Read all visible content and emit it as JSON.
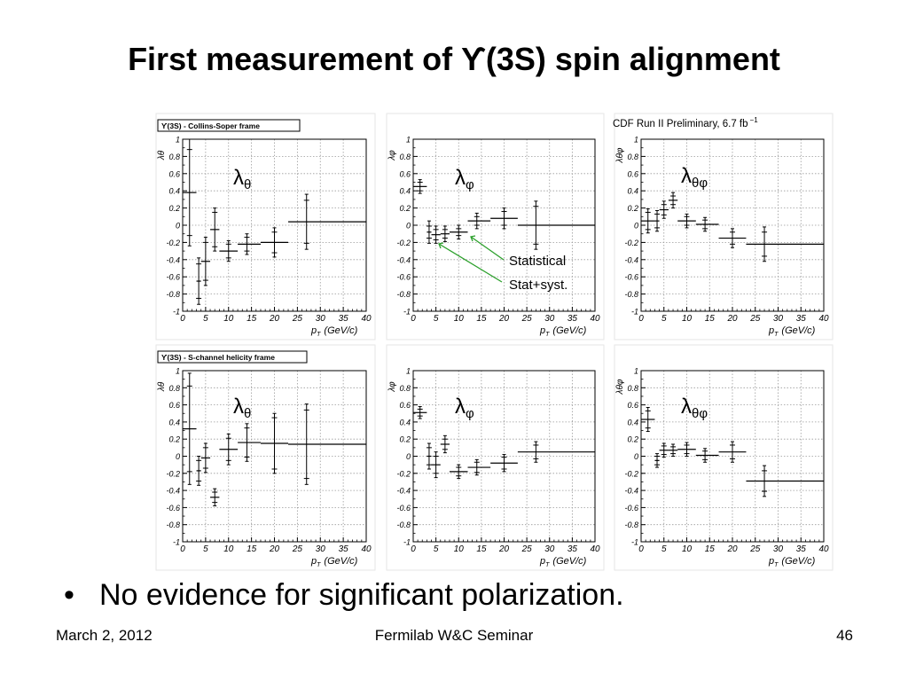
{
  "slide": {
    "title": "First measurement of ϒ(3S) spin alignment",
    "bullet": "No evidence for significant polarization.",
    "footer_left": "March 2, 2012",
    "footer_center": "Fermilab W&C Seminar",
    "footer_right": "46"
  },
  "figure": {
    "preliminary_label": "CDF Run II Preliminary, 6.7 fb",
    "preliminary_exp": "−1",
    "annotation_statistical": "Statistical",
    "annotation_stat_syst": "Stat+syst.",
    "xaxis_title": "p",
    "xaxis_sub": "T",
    "xaxis_unit": "(GeV/c)",
    "xticks": [
      "0",
      "5",
      "10",
      "15",
      "20",
      "25",
      "30",
      "35",
      "40"
    ],
    "yticks": [
      "-1",
      "-0.8",
      "-0.6",
      "-0.4",
      "-0.2",
      "0",
      "0.2",
      "0.4",
      "0.6",
      "0.8",
      "1"
    ],
    "colors": {
      "points": "#000000",
      "grid": "#9a9a9a",
      "annotation_arrow": "#2ca02c"
    }
  },
  "chart_data": [
    {
      "type": "scatter",
      "frame": "ϒ(3S) - Collins-Soper frame",
      "panel_label": "λ",
      "panel_sub": "θ",
      "yaxis_label": "λθ",
      "xlim": [
        0,
        40
      ],
      "ylim": [
        -1,
        1
      ],
      "grid": true,
      "points": [
        {
          "x": 1.5,
          "xlo": 0,
          "xhi": 3,
          "y": 0.38,
          "stat": 0.5,
          "syst": 0.62
        },
        {
          "x": 3.5,
          "xlo": 3,
          "xhi": 4,
          "y": -0.65,
          "stat": 0.2,
          "syst": 0.27
        },
        {
          "x": 5,
          "xlo": 4,
          "xhi": 6,
          "y": -0.42,
          "stat": 0.22,
          "syst": 0.28
        },
        {
          "x": 7,
          "xlo": 6,
          "xhi": 8,
          "y": -0.05,
          "stat": 0.2,
          "syst": 0.25
        },
        {
          "x": 10,
          "xlo": 8,
          "xhi": 12,
          "y": -0.3,
          "stat": 0.08,
          "syst": 0.12
        },
        {
          "x": 14,
          "xlo": 12,
          "xhi": 17,
          "y": -0.22,
          "stat": 0.08,
          "syst": 0.12
        },
        {
          "x": 20,
          "xlo": 17,
          "xhi": 23,
          "y": -0.2,
          "stat": 0.12,
          "syst": 0.17
        },
        {
          "x": 27,
          "xlo": 23,
          "xhi": 40,
          "y": 0.04,
          "stat": 0.25,
          "syst": 0.32
        }
      ]
    },
    {
      "type": "scatter",
      "frame": "",
      "panel_label": "λ",
      "panel_sub": "φ",
      "yaxis_label": "λφ",
      "xlim": [
        0,
        40
      ],
      "ylim": [
        -1,
        1
      ],
      "grid": true,
      "points": [
        {
          "x": 1.5,
          "xlo": 0,
          "xhi": 3,
          "y": 0.45,
          "stat": 0.05,
          "syst": 0.08
        },
        {
          "x": 3.5,
          "xlo": 3,
          "xhi": 4,
          "y": -0.08,
          "stat": 0.07,
          "syst": 0.13
        },
        {
          "x": 5,
          "xlo": 4,
          "xhi": 6,
          "y": -0.11,
          "stat": 0.06,
          "syst": 0.1
        },
        {
          "x": 7,
          "xlo": 6,
          "xhi": 8,
          "y": -0.1,
          "stat": 0.05,
          "syst": 0.09
        },
        {
          "x": 10,
          "xlo": 8,
          "xhi": 12,
          "y": -0.08,
          "stat": 0.04,
          "syst": 0.08
        },
        {
          "x": 14,
          "xlo": 12,
          "xhi": 17,
          "y": 0.05,
          "stat": 0.05,
          "syst": 0.09
        },
        {
          "x": 20,
          "xlo": 17,
          "xhi": 23,
          "y": 0.08,
          "stat": 0.08,
          "syst": 0.12
        },
        {
          "x": 27,
          "xlo": 23,
          "xhi": 40,
          "y": 0.0,
          "stat": 0.22,
          "syst": 0.28
        }
      ]
    },
    {
      "type": "scatter",
      "frame": "",
      "panel_label": "λ",
      "panel_sub": "θφ",
      "yaxis_label": "λθφ",
      "xlim": [
        0,
        40
      ],
      "ylim": [
        -1,
        1
      ],
      "grid": true,
      "points": [
        {
          "x": 1.5,
          "xlo": 0,
          "xhi": 3,
          "y": 0.05,
          "stat": 0.1,
          "syst": 0.14
        },
        {
          "x": 3.5,
          "xlo": 3,
          "xhi": 4,
          "y": 0.05,
          "stat": 0.08,
          "syst": 0.12
        },
        {
          "x": 5,
          "xlo": 4,
          "xhi": 6,
          "y": 0.18,
          "stat": 0.06,
          "syst": 0.1
        },
        {
          "x": 7,
          "xlo": 6,
          "xhi": 8,
          "y": 0.29,
          "stat": 0.05,
          "syst": 0.09
        },
        {
          "x": 10,
          "xlo": 8,
          "xhi": 12,
          "y": 0.05,
          "stat": 0.05,
          "syst": 0.08
        },
        {
          "x": 14,
          "xlo": 12,
          "xhi": 17,
          "y": 0.01,
          "stat": 0.05,
          "syst": 0.08
        },
        {
          "x": 20,
          "xlo": 17,
          "xhi": 23,
          "y": -0.15,
          "stat": 0.07,
          "syst": 0.11
        },
        {
          "x": 27,
          "xlo": 23,
          "xhi": 40,
          "y": -0.22,
          "stat": 0.14,
          "syst": 0.2
        }
      ]
    },
    {
      "type": "scatter",
      "frame": "ϒ(3S) - S-channel helicity frame",
      "panel_label": "λ",
      "panel_sub": "θ",
      "yaxis_label": "λθ",
      "xlim": [
        0,
        40
      ],
      "ylim": [
        -1,
        1
      ],
      "grid": true,
      "points": [
        {
          "x": 1.5,
          "xlo": 0,
          "xhi": 3,
          "y": 0.32,
          "stat": 0.5,
          "syst": 0.65
        },
        {
          "x": 3.5,
          "xlo": 3,
          "xhi": 4,
          "y": -0.17,
          "stat": 0.12,
          "syst": 0.17
        },
        {
          "x": 5,
          "xlo": 4,
          "xhi": 6,
          "y": -0.02,
          "stat": 0.12,
          "syst": 0.17
        },
        {
          "x": 7,
          "xlo": 6,
          "xhi": 8,
          "y": -0.48,
          "stat": 0.06,
          "syst": 0.1
        },
        {
          "x": 10,
          "xlo": 8,
          "xhi": 12,
          "y": 0.08,
          "stat": 0.13,
          "syst": 0.18
        },
        {
          "x": 14,
          "xlo": 12,
          "xhi": 17,
          "y": 0.16,
          "stat": 0.17,
          "syst": 0.22
        },
        {
          "x": 20,
          "xlo": 17,
          "xhi": 23,
          "y": 0.15,
          "stat": 0.3,
          "syst": 0.35
        },
        {
          "x": 27,
          "xlo": 23,
          "xhi": 40,
          "y": 0.14,
          "stat": 0.4,
          "syst": 0.47
        }
      ]
    },
    {
      "type": "scatter",
      "frame": "",
      "panel_label": "λ",
      "panel_sub": "φ",
      "yaxis_label": "λφ",
      "xlim": [
        0,
        40
      ],
      "ylim": [
        -1,
        1
      ],
      "grid": true,
      "points": [
        {
          "x": 1.5,
          "xlo": 0,
          "xhi": 3,
          "y": 0.51,
          "stat": 0.04,
          "syst": 0.07
        },
        {
          "x": 3.5,
          "xlo": 3,
          "xhi": 4,
          "y": 0.0,
          "stat": 0.1,
          "syst": 0.15
        },
        {
          "x": 5,
          "xlo": 4,
          "xhi": 6,
          "y": -0.1,
          "stat": 0.1,
          "syst": 0.15
        },
        {
          "x": 7,
          "xlo": 6,
          "xhi": 8,
          "y": 0.14,
          "stat": 0.06,
          "syst": 0.1
        },
        {
          "x": 10,
          "xlo": 8,
          "xhi": 12,
          "y": -0.18,
          "stat": 0.05,
          "syst": 0.08
        },
        {
          "x": 14,
          "xlo": 12,
          "xhi": 17,
          "y": -0.13,
          "stat": 0.06,
          "syst": 0.09
        },
        {
          "x": 20,
          "xlo": 17,
          "xhi": 23,
          "y": -0.08,
          "stat": 0.07,
          "syst": 0.1
        },
        {
          "x": 27,
          "xlo": 23,
          "xhi": 40,
          "y": 0.05,
          "stat": 0.08,
          "syst": 0.12
        }
      ]
    },
    {
      "type": "scatter",
      "frame": "",
      "panel_label": "λ",
      "panel_sub": "θφ",
      "yaxis_label": "λθφ",
      "xlim": [
        0,
        40
      ],
      "ylim": [
        -1,
        1
      ],
      "grid": true,
      "points": [
        {
          "x": 1.5,
          "xlo": 0,
          "xhi": 3,
          "y": 0.43,
          "stat": 0.1,
          "syst": 0.14
        },
        {
          "x": 3.5,
          "xlo": 3,
          "xhi": 4,
          "y": -0.05,
          "stat": 0.05,
          "syst": 0.08
        },
        {
          "x": 5,
          "xlo": 4,
          "xhi": 6,
          "y": 0.07,
          "stat": 0.05,
          "syst": 0.08
        },
        {
          "x": 7,
          "xlo": 6,
          "xhi": 8,
          "y": 0.07,
          "stat": 0.04,
          "syst": 0.07
        },
        {
          "x": 10,
          "xlo": 8,
          "xhi": 12,
          "y": 0.08,
          "stat": 0.05,
          "syst": 0.08
        },
        {
          "x": 14,
          "xlo": 12,
          "xhi": 17,
          "y": 0.01,
          "stat": 0.05,
          "syst": 0.08
        },
        {
          "x": 20,
          "xlo": 17,
          "xhi": 23,
          "y": 0.05,
          "stat": 0.08,
          "syst": 0.12
        },
        {
          "x": 27,
          "xlo": 23,
          "xhi": 40,
          "y": -0.29,
          "stat": 0.12,
          "syst": 0.18
        }
      ]
    }
  ]
}
